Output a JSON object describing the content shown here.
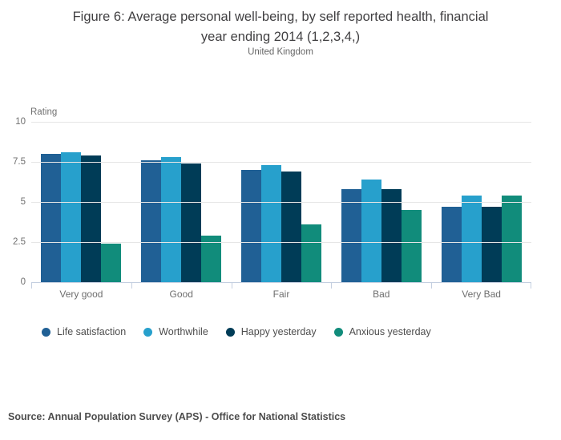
{
  "header": {
    "title_lines": [
      "Figure 6: Average personal well-being, by self reported health, financial",
      "year ending 2014 (1,2,3,4,)"
    ],
    "subtitle": "United Kingdom"
  },
  "source": "Source: Annual Population Survey (APS) - Office for National Statistics",
  "chart_data": {
    "type": "bar",
    "title": "Figure 6: Average personal well-being, by self reported health, financial year ending 2014 (1,2,3,4,)",
    "subtitle": "United Kingdom",
    "xlabel": "",
    "ylabel": "Rating",
    "ylim": [
      0,
      10
    ],
    "yticks": [
      0,
      2.5,
      5,
      7.5,
      10
    ],
    "grid": true,
    "legend_position": "bottom",
    "categories": [
      "Very good",
      "Good",
      "Fair",
      "Bad",
      "Very Bad"
    ],
    "series": [
      {
        "name": "Life satisfaction",
        "color": "#206095",
        "values": [
          8.0,
          7.6,
          7.0,
          5.8,
          4.7
        ]
      },
      {
        "name": "Worthwhile",
        "color": "#27a0cc",
        "values": [
          8.1,
          7.8,
          7.3,
          6.4,
          5.4
        ]
      },
      {
        "name": "Happy yesterday",
        "color": "#003c57",
        "values": [
          7.9,
          7.4,
          6.9,
          5.8,
          4.7
        ]
      },
      {
        "name": "Anxious yesterday",
        "color": "#118c7b",
        "values": [
          2.4,
          2.9,
          3.6,
          4.5,
          5.4
        ]
      }
    ]
  }
}
